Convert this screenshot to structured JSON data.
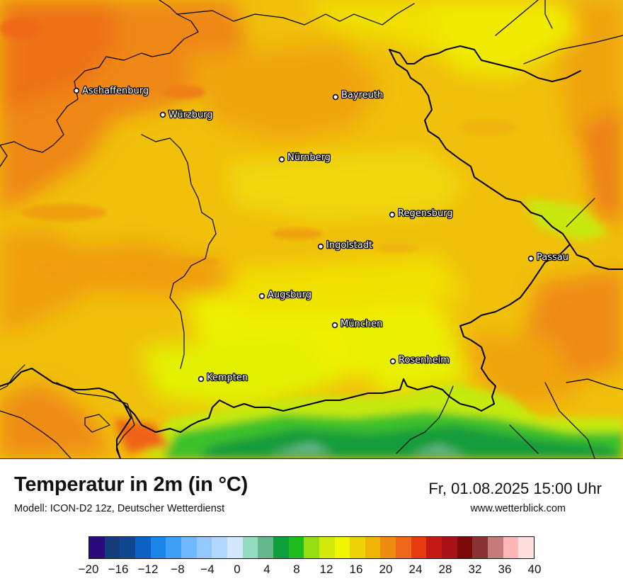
{
  "title": "Temperatur in 2m (in °C)",
  "model": "Modell: ICON-D2 12z, Deutscher Wetterdienst",
  "datetime": "Fr, 01.08.2025 15:00 Uhr",
  "website": "www.wetterblick.com",
  "cities": [
    {
      "name": "Aschaffenburg"
    },
    {
      "name": "Würzburg"
    },
    {
      "name": "Bayreuth"
    },
    {
      "name": "Nürnberg"
    },
    {
      "name": "Regensburg"
    },
    {
      "name": "Ingolstadt"
    },
    {
      "name": "Passau"
    },
    {
      "name": "Augsburg"
    },
    {
      "name": "München"
    },
    {
      "name": "Rosenheim"
    },
    {
      "name": "Kempten"
    }
  ],
  "legend": {
    "min": -20,
    "max": 40,
    "step": 2,
    "tick_labels": [
      "−20",
      "−16",
      "−12",
      "−8",
      "−4",
      "0",
      "4",
      "8",
      "12",
      "16",
      "20",
      "24",
      "28",
      "32",
      "36",
      "40"
    ],
    "colors": [
      "#2b0a7c",
      "#123c7a",
      "#10478e",
      "#0c62c4",
      "#1b86ea",
      "#3fa0fa",
      "#70b9ff",
      "#93c9ff",
      "#b3d8ff",
      "#d3e7ff",
      "#93dcc1",
      "#65b88c",
      "#0f9e3c",
      "#1fbb1f",
      "#93dd12",
      "#d3ea0b",
      "#f0f500",
      "#eed208",
      "#eeb508",
      "#ef8c10",
      "#f0661b",
      "#e63a0f",
      "#c31a13",
      "#a81218",
      "#7c0808",
      "#8a3232",
      "#c67a7a",
      "#ffb6b6",
      "#ffdede"
    ]
  },
  "field_colors": {
    "hot": "#ee7a16",
    "warm": "#f0a00e",
    "mild": "#eec20a",
    "cool": "#f0da06",
    "cooler": "#f0f000",
    "mountain_light": "#bde80c",
    "mountain_green": "#2cbe26",
    "mountain_dark": "#0e9a3a",
    "mountain_blue": "#67b88f"
  }
}
